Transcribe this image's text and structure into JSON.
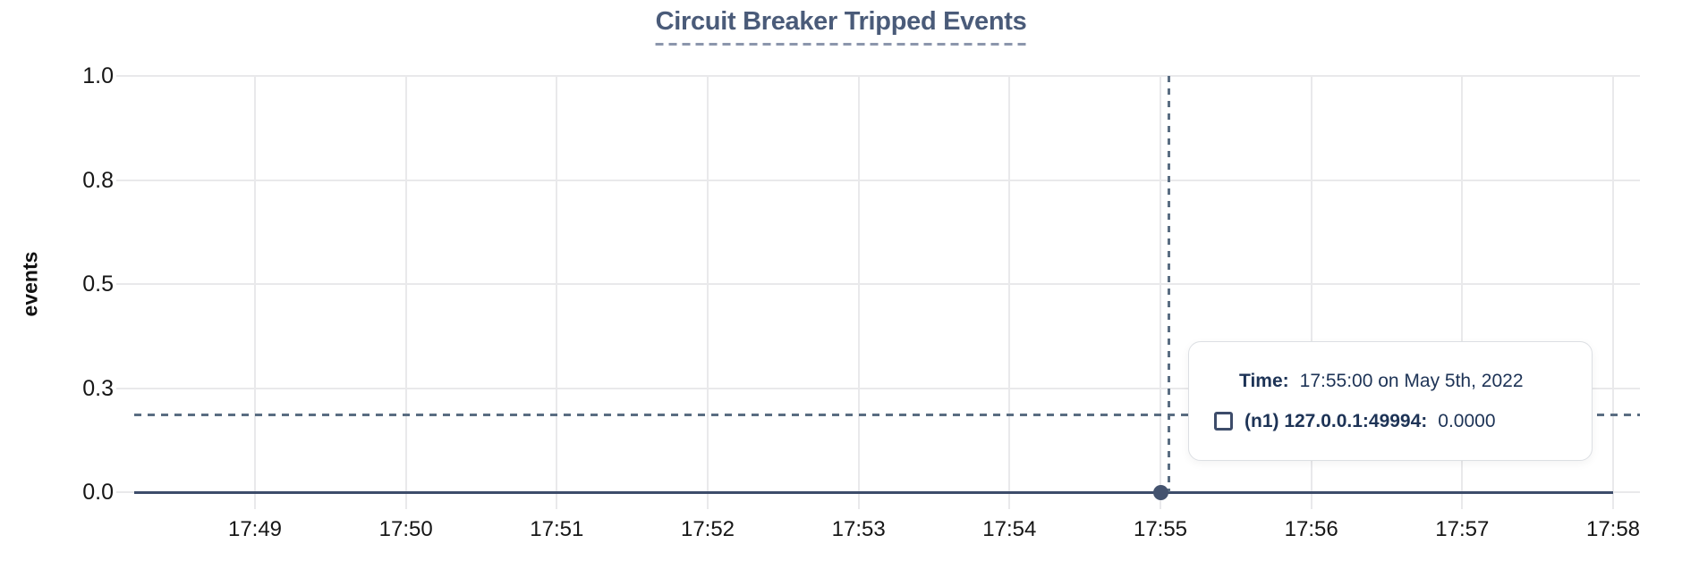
{
  "chart": {
    "title": "Circuit Breaker Tripped Events",
    "ylabel": "events"
  },
  "chart_data": {
    "type": "line",
    "title": "Circuit Breaker Tripped Events",
    "xlabel": "",
    "ylabel": "events",
    "x_ticks": [
      "17:49",
      "17:50",
      "17:51",
      "17:52",
      "17:53",
      "17:54",
      "17:55",
      "17:56",
      "17:57",
      "17:58"
    ],
    "y_ticks": [
      "1.0",
      "0.8",
      "0.5",
      "0.3",
      "0.0"
    ],
    "y_tick_values": [
      1.0,
      0.75,
      0.5,
      0.25,
      0.0
    ],
    "ylim": [
      0,
      1
    ],
    "grid": true,
    "legend_position": "tooltip",
    "series": [
      {
        "name": "(n1) 127.0.0.1:49994",
        "color": "#3d4c6a",
        "x": [
          "17:49",
          "17:50",
          "17:51",
          "17:52",
          "17:53",
          "17:54",
          "17:55",
          "17:56",
          "17:57",
          "17:58"
        ],
        "values": [
          0,
          0,
          0,
          0,
          0,
          0,
          0,
          0,
          0,
          0
        ]
      }
    ],
    "highlight": {
      "x_tick": "17:55",
      "value": 0
    }
  },
  "tooltip": {
    "time_label": "Time:",
    "time_value": "17:55:00 on May 5th, 2022",
    "series_label": "(n1) 127.0.0.1:49994:",
    "series_value": "0.0000"
  },
  "colors": {
    "background": "#ffffff",
    "title": "#4a5b79",
    "title-underline": "#8b96ac",
    "axis-text": "#161616",
    "gridline": "#e9e9eb",
    "series": "#3d4c6a",
    "marker": "#44536f",
    "crosshair": "#5a6d82",
    "tooltip-text": "#1d3356",
    "tooltip-border": "#dcdfe3"
  }
}
